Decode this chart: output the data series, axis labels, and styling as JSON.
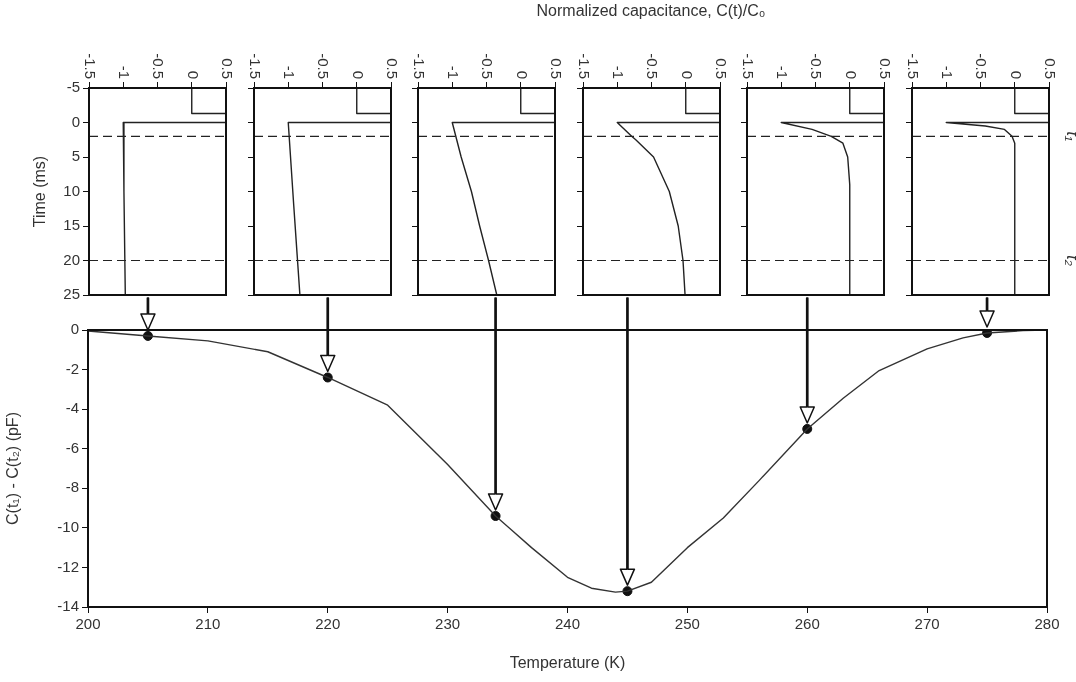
{
  "chart_data": [
    {
      "type": "line",
      "ylabel": "Time (ms)",
      "xlim": [
        -1.5,
        0.5
      ],
      "xticks": [
        -1.5,
        -1,
        -0.5,
        0,
        0.5
      ],
      "ylim": [
        25,
        -5
      ],
      "yticks": [
        -5,
        0,
        5,
        10,
        15,
        20,
        25
      ],
      "series": [
        {
          "color": "#222222",
          "x": [
            0,
            0,
            0.5
          ],
          "values": [
            -5,
            -1.3,
            -1.3
          ]
        },
        {
          "color": "#222222",
          "x": [
            0.5,
            -1.0,
            -0.99,
            -0.97
          ],
          "values": [
            0,
            0,
            10,
            25
          ]
        }
      ],
      "ref_lines": [
        {
          "axis": "y",
          "value": 2,
          "line_style": "dashed"
        },
        {
          "axis": "y",
          "value": 20,
          "line_style": "dashed"
        }
      ]
    },
    {
      "type": "line",
      "tick_labels": "x",
      "xlim": [
        -1.5,
        0.5
      ],
      "xticks": [
        -1.5,
        -1,
        -0.5,
        0,
        0.5
      ],
      "ylim": [
        25,
        -5
      ],
      "yticks": [
        -5,
        0,
        5,
        10,
        15,
        20,
        25
      ],
      "series": [
        {
          "color": "#222222",
          "x": [
            0,
            0,
            0.5
          ],
          "values": [
            -5,
            -1.3,
            -1.3
          ]
        },
        {
          "color": "#222222",
          "x": [
            0.5,
            -1.0,
            -0.92,
            -0.83
          ],
          "values": [
            0,
            0,
            12,
            25
          ]
        }
      ],
      "ref_lines": [
        {
          "axis": "y",
          "value": 2,
          "line_style": "dashed"
        },
        {
          "axis": "y",
          "value": 20,
          "line_style": "dashed"
        }
      ]
    },
    {
      "type": "line",
      "tick_labels": "x",
      "xlim": [
        -1.5,
        0.5
      ],
      "xticks": [
        -1.5,
        -1,
        -0.5,
        0,
        0.5
      ],
      "ylim": [
        25,
        -5
      ],
      "yticks": [
        -5,
        0,
        5,
        10,
        15,
        20,
        25
      ],
      "series": [
        {
          "color": "#222222",
          "x": [
            0,
            0,
            0.5
          ],
          "values": [
            -5,
            -1.3,
            -1.3
          ]
        },
        {
          "color": "#222222",
          "x": [
            0.5,
            -1.0,
            -0.87,
            -0.72,
            -0.6,
            -0.47,
            -0.35
          ],
          "values": [
            0,
            0,
            5,
            10,
            15,
            20,
            25
          ]
        }
      ],
      "ref_lines": [
        {
          "axis": "y",
          "value": 2,
          "line_style": "dashed"
        },
        {
          "axis": "y",
          "value": 20,
          "line_style": "dashed"
        }
      ]
    },
    {
      "type": "line",
      "xlabel": "Normalized capacitance, C(t)/C₀",
      "tick_labels": "x",
      "xlim": [
        -1.5,
        0.5
      ],
      "xticks": [
        -1.5,
        -1,
        -0.5,
        0,
        0.5
      ],
      "ylim": [
        25,
        -5
      ],
      "yticks": [
        -5,
        0,
        5,
        10,
        15,
        20,
        25
      ],
      "series": [
        {
          "color": "#222222",
          "x": [
            0,
            0,
            0.5
          ],
          "values": [
            -5,
            -1.3,
            -1.3
          ]
        },
        {
          "color": "#222222",
          "x": [
            0.5,
            -1.0,
            -0.79,
            -0.73,
            -0.47,
            -0.24,
            -0.11,
            -0.04,
            -0.01
          ],
          "values": [
            0,
            0,
            2,
            2.5,
            5,
            10,
            15,
            20,
            25
          ]
        }
      ],
      "ref_lines": [
        {
          "axis": "y",
          "value": 2,
          "line_style": "dashed"
        },
        {
          "axis": "y",
          "value": 20,
          "line_style": "dashed"
        }
      ]
    },
    {
      "type": "line",
      "tick_labels": "x",
      "xlim": [
        -1.5,
        0.5
      ],
      "xticks": [
        -1.5,
        -1,
        -0.5,
        0,
        0.5
      ],
      "ylim": [
        25,
        -5
      ],
      "yticks": [
        -5,
        0,
        5,
        10,
        15,
        20,
        25
      ],
      "series": [
        {
          "color": "#222222",
          "x": [
            0,
            0,
            0.5
          ],
          "values": [
            -5,
            -1.3,
            -1.3
          ]
        },
        {
          "color": "#222222",
          "x": [
            0.5,
            -1.0,
            -0.55,
            -0.27,
            -0.1,
            -0.03,
            0,
            0
          ],
          "values": [
            0,
            0,
            1,
            2,
            3,
            5,
            9,
            25
          ]
        }
      ],
      "ref_lines": [
        {
          "axis": "y",
          "value": 2,
          "line_style": "dashed"
        },
        {
          "axis": "y",
          "value": 20,
          "line_style": "dashed"
        }
      ]
    },
    {
      "type": "line",
      "tick_labels": "x",
      "xlim": [
        -1.5,
        0.5
      ],
      "xticks": [
        -1.5,
        -1,
        -0.5,
        0,
        0.5
      ],
      "ylim": [
        25,
        -5
      ],
      "yticks": [
        -5,
        0,
        5,
        10,
        15,
        20,
        25
      ],
      "series": [
        {
          "color": "#222222",
          "x": [
            0,
            0,
            0.5
          ],
          "values": [
            -5,
            -1.3,
            -1.3
          ]
        },
        {
          "color": "#222222",
          "x": [
            0.5,
            -1.0,
            -0.43,
            -0.15,
            -0.04,
            0,
            0
          ],
          "values": [
            0,
            0,
            0.5,
            1,
            2,
            3,
            25
          ]
        }
      ],
      "ref_lines": [
        {
          "axis": "y",
          "value": 2,
          "line_style": "dashed",
          "label": "t₁"
        },
        {
          "axis": "y",
          "value": 20,
          "line_style": "dashed",
          "label": "t₂"
        }
      ]
    },
    {
      "type": "line",
      "xlabel": "Temperature (K)",
      "ylabel": "C(t₁) - C(t₂) (pF)",
      "xlim": [
        200,
        280
      ],
      "xticks": [
        200,
        210,
        220,
        230,
        240,
        250,
        260,
        270,
        280
      ],
      "ylim": [
        -14,
        0
      ],
      "yticks": [
        -14,
        -12,
        -10,
        -8,
        -6,
        -4,
        -2,
        0
      ],
      "series": [
        {
          "color": "#333333",
          "x": [
            200,
            205,
            210,
            215,
            220,
            225,
            230,
            234,
            237,
            240,
            242,
            244,
            245,
            247,
            250,
            253,
            256,
            260,
            263,
            266,
            270,
            273,
            275,
            278,
            280
          ],
          "values": [
            -0.05,
            -0.3,
            -0.55,
            -1.1,
            -2.4,
            -3.8,
            -6.8,
            -9.4,
            -11.0,
            -12.5,
            -13.05,
            -13.25,
            -13.2,
            -12.75,
            -11.0,
            -9.5,
            -7.6,
            -5.0,
            -3.45,
            -2.05,
            -0.95,
            -0.4,
            -0.15,
            -0.03,
            0
          ]
        },
        {
          "type": "scatter",
          "marker": "circle",
          "color": "#111111",
          "x": [
            205,
            220,
            234,
            245,
            260,
            275
          ],
          "values": [
            -0.3,
            -2.4,
            -9.4,
            -13.2,
            -5.0,
            -0.15
          ]
        }
      ]
    }
  ]
}
